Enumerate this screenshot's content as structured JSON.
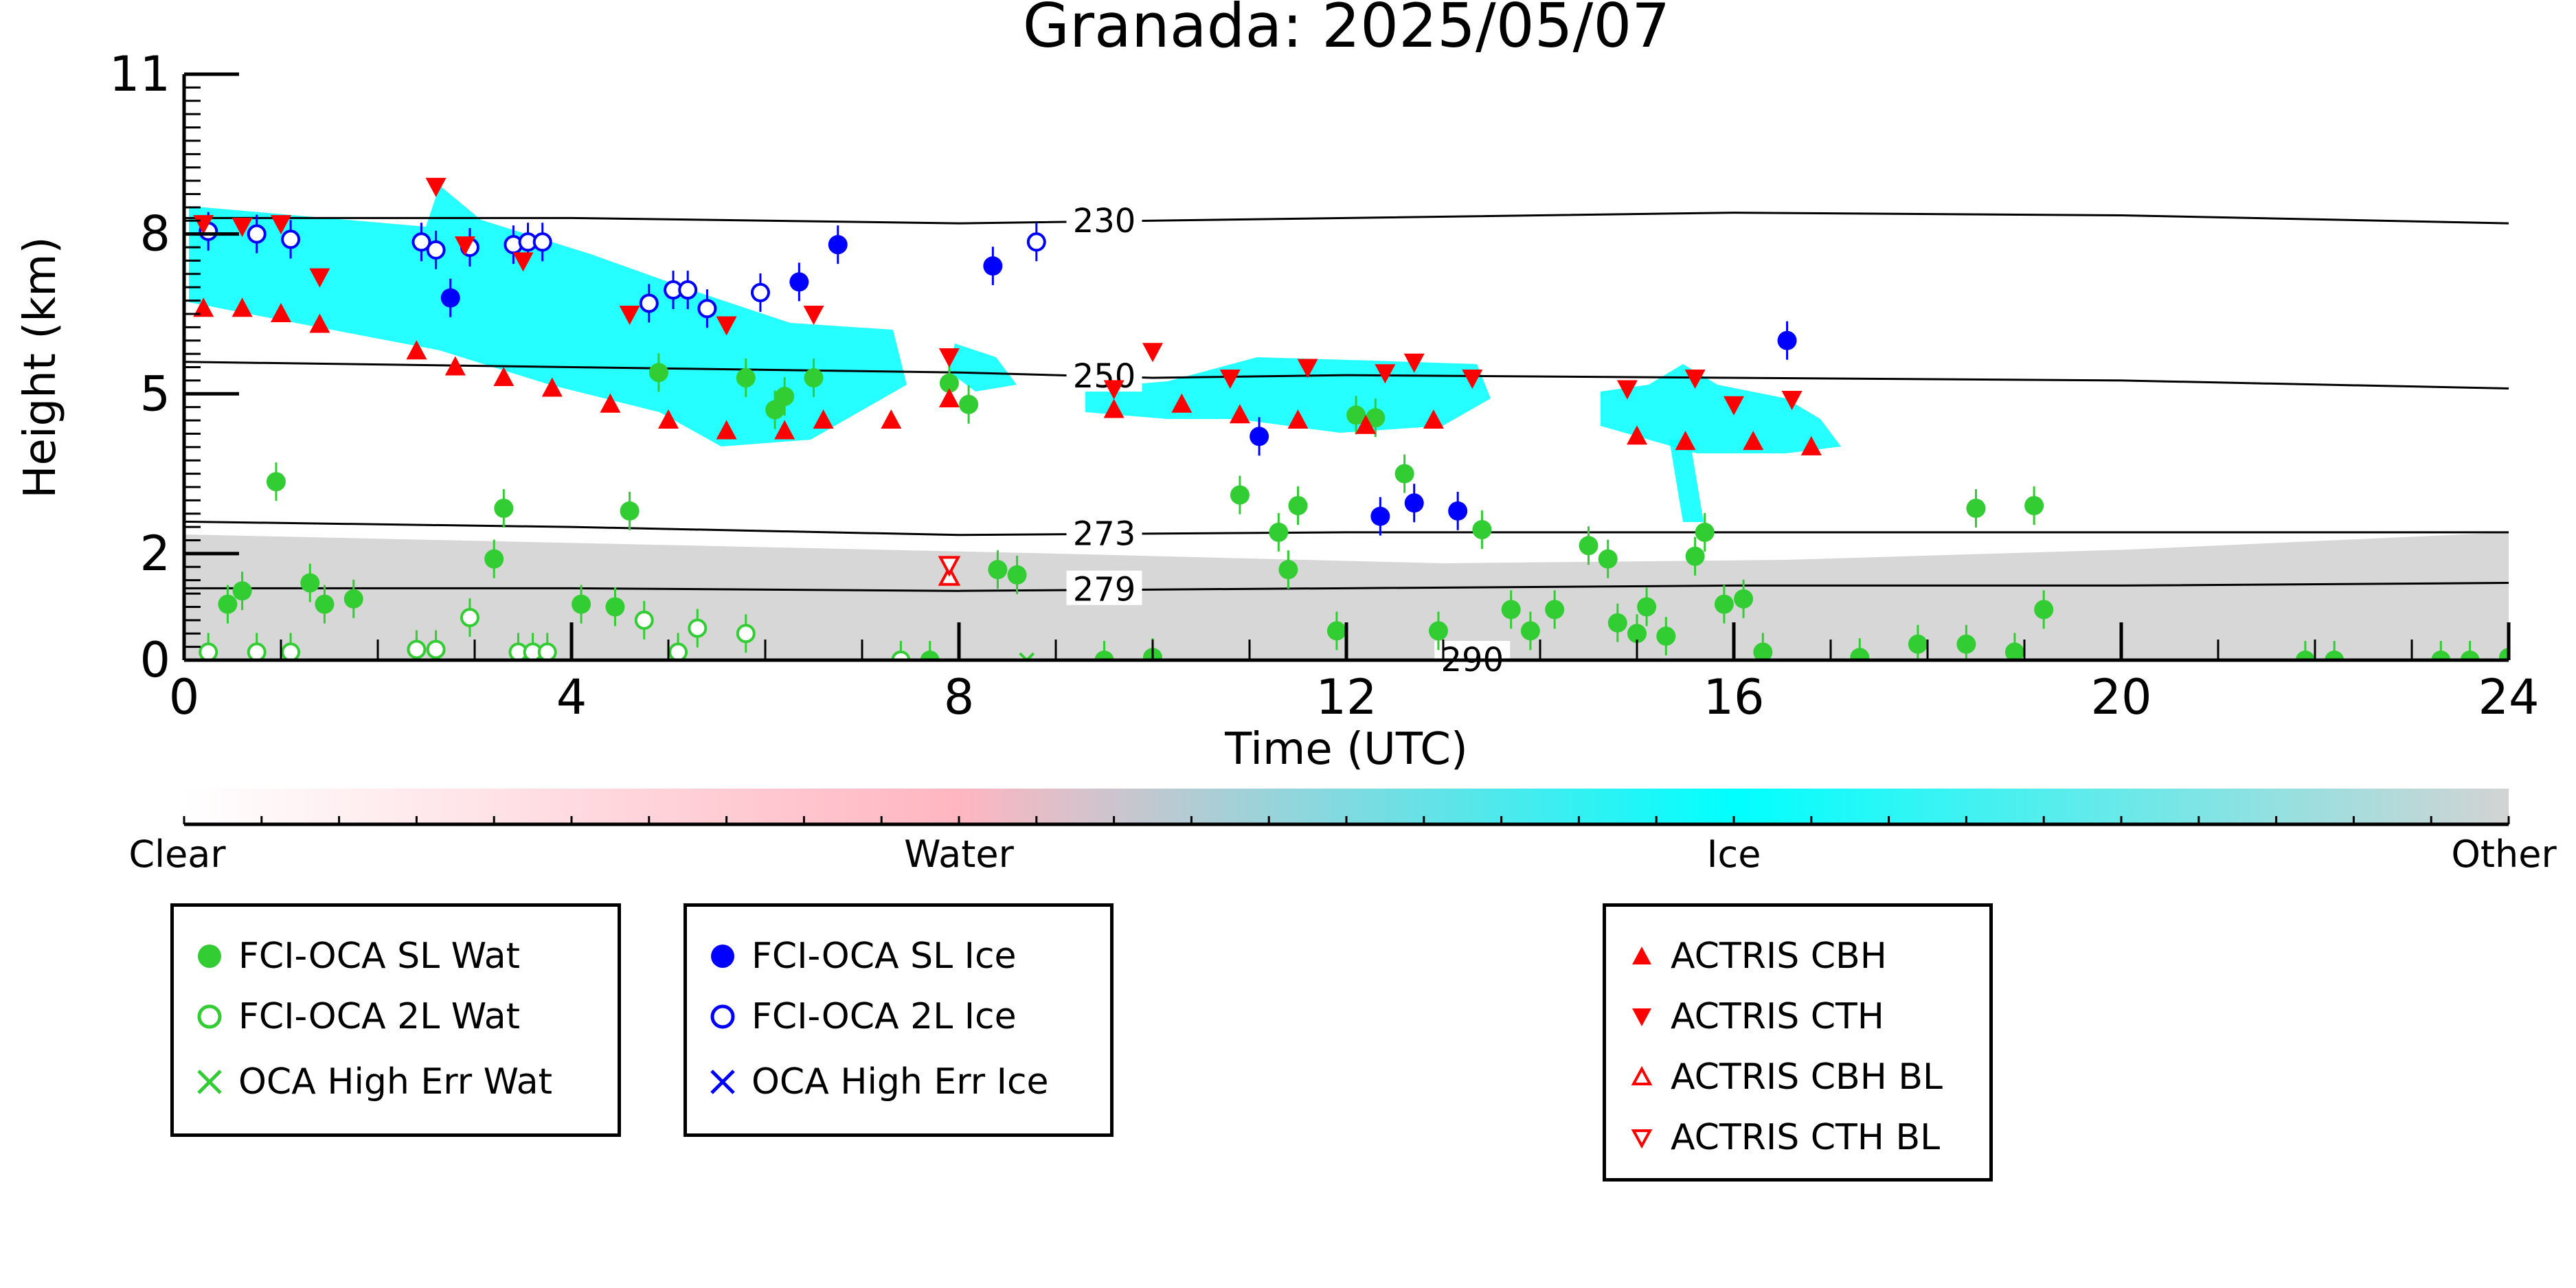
{
  "chart_data": {
    "type": "scatter",
    "title": "Granada: 2025/05/07",
    "xlabel": "Time (UTC)",
    "ylabel": "Height (km)",
    "xlim": [
      0,
      24
    ],
    "ylim": [
      0,
      11
    ],
    "x_ticks": [
      0,
      4,
      8,
      12,
      16,
      20,
      24
    ],
    "y_ticks": [
      0,
      2,
      5,
      8,
      11
    ],
    "y_tick_labels": [
      "0",
      "2",
      "5",
      "8",
      "11"
    ],
    "grid": false,
    "colorbar": {
      "labels": [
        "Clear",
        "Water",
        "Ice",
        "Other"
      ],
      "colors": [
        "#ffffff",
        "#ffb6c1",
        "#00ffff",
        "#d3d3d3"
      ]
    },
    "contours": [
      {
        "label": "230",
        "points": [
          [
            0,
            8.3
          ],
          [
            4,
            8.3
          ],
          [
            8,
            8.2
          ],
          [
            12,
            8.3
          ],
          [
            16,
            8.4
          ],
          [
            20,
            8.35
          ],
          [
            24,
            8.2
          ]
        ]
      },
      {
        "label": "250",
        "points": [
          [
            0,
            5.6
          ],
          [
            4,
            5.5
          ],
          [
            8,
            5.4
          ],
          [
            10,
            5.3
          ],
          [
            12,
            5.35
          ],
          [
            16,
            5.3
          ],
          [
            20,
            5.25
          ],
          [
            24,
            5.1
          ]
        ]
      },
      {
        "label": "273",
        "points": [
          [
            0,
            2.6
          ],
          [
            4,
            2.5
          ],
          [
            8,
            2.35
          ],
          [
            12,
            2.4
          ],
          [
            16,
            2.4
          ],
          [
            20,
            2.4
          ],
          [
            24,
            2.4
          ]
        ]
      },
      {
        "label": "279",
        "points": [
          [
            0,
            1.35
          ],
          [
            4,
            1.35
          ],
          [
            8,
            1.3
          ],
          [
            12,
            1.35
          ],
          [
            16,
            1.4
          ],
          [
            20,
            1.4
          ],
          [
            24,
            1.45
          ]
        ]
      },
      {
        "label": "290",
        "points": [
          [
            13,
            0.0
          ],
          [
            16,
            0.0
          ],
          [
            20,
            0.0
          ]
        ]
      }
    ],
    "series": [
      {
        "name": "FCI-OCA SL Wat",
        "color": "#32cd32",
        "marker": "filled-circle",
        "points": [
          [
            0.45,
            1.05
          ],
          [
            0.6,
            1.3
          ],
          [
            0.95,
            3.35
          ],
          [
            1.3,
            1.45
          ],
          [
            1.45,
            1.05
          ],
          [
            1.75,
            1.15
          ],
          [
            3.2,
            1.9
          ],
          [
            3.3,
            2.85
          ],
          [
            4.1,
            1.05
          ],
          [
            4.45,
            1.0
          ],
          [
            4.6,
            2.8
          ],
          [
            4.9,
            5.4
          ],
          [
            5.8,
            5.3
          ],
          [
            6.1,
            4.7
          ],
          [
            6.2,
            4.95
          ],
          [
            6.5,
            5.3
          ],
          [
            7.7,
            0.0
          ],
          [
            7.9,
            5.2
          ],
          [
            8.1,
            4.8
          ],
          [
            8.4,
            1.7
          ],
          [
            8.6,
            1.6
          ],
          [
            9.5,
            0.0
          ],
          [
            10.0,
            0.05
          ],
          [
            10.9,
            3.1
          ],
          [
            11.3,
            2.4
          ],
          [
            11.4,
            1.7
          ],
          [
            11.5,
            2.9
          ],
          [
            11.9,
            0.55
          ],
          [
            12.1,
            4.6
          ],
          [
            12.3,
            4.55
          ],
          [
            12.6,
            3.5
          ],
          [
            12.95,
            0.55
          ],
          [
            13.4,
            2.45
          ],
          [
            13.7,
            0.95
          ],
          [
            13.9,
            0.55
          ],
          [
            14.15,
            0.95
          ],
          [
            14.5,
            2.15
          ],
          [
            14.7,
            1.9
          ],
          [
            14.8,
            0.7
          ],
          [
            15.0,
            0.5
          ],
          [
            15.1,
            1.0
          ],
          [
            15.3,
            0.45
          ],
          [
            15.6,
            1.95
          ],
          [
            15.7,
            2.4
          ],
          [
            15.9,
            1.05
          ],
          [
            16.1,
            1.15
          ],
          [
            16.3,
            0.15
          ],
          [
            17.3,
            0.05
          ],
          [
            17.9,
            0.3
          ],
          [
            18.4,
            0.3
          ],
          [
            18.5,
            2.85
          ],
          [
            18.9,
            0.15
          ],
          [
            19.1,
            2.9
          ],
          [
            19.2,
            0.95
          ],
          [
            21.9,
            0.0
          ],
          [
            22.2,
            0.0
          ],
          [
            23.3,
            0.0
          ],
          [
            23.6,
            0.0
          ],
          [
            24.0,
            0.05
          ]
        ]
      },
      {
        "name": "FCI-OCA 2L Wat",
        "color": "#32cd32",
        "marker": "open-circle",
        "points": [
          [
            0.25,
            0.15
          ],
          [
            0.75,
            0.15
          ],
          [
            1.1,
            0.15
          ],
          [
            2.4,
            0.2
          ],
          [
            2.6,
            0.2
          ],
          [
            2.95,
            0.8
          ],
          [
            3.45,
            0.15
          ],
          [
            3.6,
            0.15
          ],
          [
            3.75,
            0.15
          ],
          [
            4.75,
            0.75
          ],
          [
            5.1,
            0.15
          ],
          [
            5.3,
            0.6
          ],
          [
            5.8,
            0.5
          ],
          [
            7.4,
            0.0
          ]
        ]
      },
      {
        "name": "OCA High Err Wat",
        "color": "#32cd32",
        "marker": "x",
        "points": [
          [
            8.7,
            0.0
          ]
        ]
      },
      {
        "name": "FCI-OCA SL Ice",
        "color": "#0000ff",
        "marker": "filled-circle",
        "points": [
          [
            2.75,
            6.8
          ],
          [
            6.35,
            7.1
          ],
          [
            6.75,
            7.8
          ],
          [
            8.35,
            7.4
          ],
          [
            11.1,
            4.2
          ],
          [
            12.35,
            2.7
          ],
          [
            12.7,
            2.95
          ],
          [
            13.15,
            2.8
          ],
          [
            16.55,
            6.0
          ]
        ]
      },
      {
        "name": "FCI-OCA 2L Ice",
        "color": "#0000ff",
        "marker": "open-circle",
        "points": [
          [
            0.25,
            8.05
          ],
          [
            0.75,
            8.0
          ],
          [
            1.1,
            7.9
          ],
          [
            2.45,
            7.85
          ],
          [
            2.6,
            7.7
          ],
          [
            2.95,
            7.75
          ],
          [
            3.4,
            7.8
          ],
          [
            3.55,
            7.85
          ],
          [
            3.7,
            7.85
          ],
          [
            4.8,
            6.7
          ],
          [
            5.05,
            6.95
          ],
          [
            5.2,
            6.95
          ],
          [
            5.4,
            6.6
          ],
          [
            5.95,
            6.9
          ],
          [
            8.8,
            7.85
          ]
        ]
      },
      {
        "name": "OCA High Err Ice",
        "color": "#0000ff",
        "marker": "x",
        "points": []
      },
      {
        "name": "ACTRIS CBH",
        "color": "#ff0000",
        "marker": "triangle-up",
        "points": [
          [
            0.2,
            6.6
          ],
          [
            0.6,
            6.6
          ],
          [
            1.0,
            6.5
          ],
          [
            1.4,
            6.3
          ],
          [
            2.4,
            5.8
          ],
          [
            2.8,
            5.5
          ],
          [
            3.3,
            5.3
          ],
          [
            3.8,
            5.1
          ],
          [
            4.4,
            4.8
          ],
          [
            5.0,
            4.5
          ],
          [
            5.6,
            4.3
          ],
          [
            6.2,
            4.3
          ],
          [
            6.6,
            4.5
          ],
          [
            7.3,
            4.5
          ],
          [
            7.9,
            4.9
          ],
          [
            9.6,
            4.7
          ],
          [
            10.3,
            4.8
          ],
          [
            10.9,
            4.6
          ],
          [
            11.5,
            4.5
          ],
          [
            12.2,
            4.4
          ],
          [
            12.9,
            4.5
          ],
          [
            15.0,
            4.2
          ],
          [
            15.5,
            4.1
          ],
          [
            16.2,
            4.1
          ],
          [
            16.8,
            4.0
          ]
        ]
      },
      {
        "name": "ACTRIS CTH",
        "color": "#ff0000",
        "marker": "triangle-down",
        "points": [
          [
            0.2,
            8.2
          ],
          [
            0.6,
            8.15
          ],
          [
            1.0,
            8.2
          ],
          [
            1.4,
            7.2
          ],
          [
            2.6,
            8.9
          ],
          [
            2.9,
            7.8
          ],
          [
            3.5,
            7.5
          ],
          [
            4.6,
            6.5
          ],
          [
            5.6,
            6.3
          ],
          [
            6.5,
            6.5
          ],
          [
            7.9,
            5.7
          ],
          [
            9.6,
            5.1
          ],
          [
            10.0,
            5.8
          ],
          [
            10.8,
            5.3
          ],
          [
            11.6,
            5.5
          ],
          [
            12.4,
            5.4
          ],
          [
            12.7,
            5.6
          ],
          [
            13.3,
            5.3
          ],
          [
            14.9,
            5.1
          ],
          [
            15.6,
            5.3
          ],
          [
            16.0,
            4.8
          ],
          [
            16.6,
            4.9
          ]
        ]
      },
      {
        "name": "ACTRIS CBH BL",
        "color": "#ff0000",
        "marker": "open-triangle-up",
        "points": [
          [
            7.9,
            1.55
          ]
        ]
      },
      {
        "name": "ACTRIS CTH BL",
        "color": "#ff0000",
        "marker": "open-triangle-down",
        "points": [
          [
            7.9,
            1.8
          ]
        ]
      }
    ]
  },
  "legend": {
    "water": [
      "FCI-OCA SL Wat",
      "FCI-OCA 2L Wat",
      "OCA High Err Wat"
    ],
    "ice": [
      "FCI-OCA SL Ice",
      "FCI-OCA 2L Ice",
      "OCA High Err Ice"
    ],
    "actris": [
      "ACTRIS CBH",
      "ACTRIS CTH",
      "ACTRIS CBH BL",
      "ACTRIS CTH BL"
    ]
  }
}
